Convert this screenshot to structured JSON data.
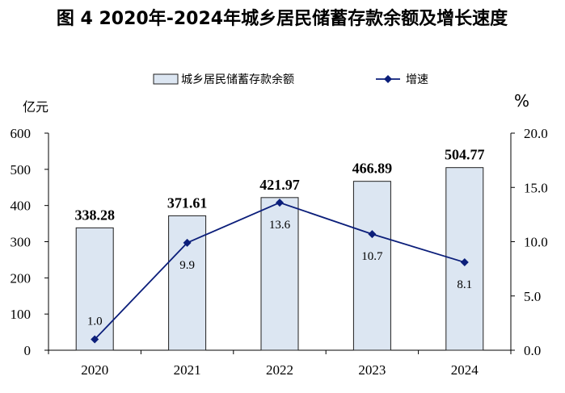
{
  "chart_data": {
    "type": "bar",
    "title": "图 4  2020年-2024年城乡居民储蓄存款余额及增长速度",
    "categories": [
      "2020",
      "2021",
      "2022",
      "2023",
      "2024"
    ],
    "series": [
      {
        "name": "城乡居民储蓄存款余额",
        "type": "bar",
        "axis": "left",
        "values": [
          338.28,
          371.61,
          421.97,
          466.89,
          504.77
        ],
        "labels": [
          "338.28",
          "371.61",
          "421.97",
          "466.89",
          "504.77"
        ]
      },
      {
        "name": "增速",
        "type": "line",
        "axis": "right",
        "values": [
          1.0,
          9.9,
          13.6,
          10.7,
          8.1
        ],
        "labels": [
          "1.0",
          "9.9",
          "13.6",
          "10.7",
          "8.1"
        ]
      }
    ],
    "ylabel_left": "亿元",
    "ylabel_right": "%",
    "ylim_left": [
      0,
      600
    ],
    "ylim_right": [
      0,
      20
    ],
    "yticks_left": [
      "0",
      "100",
      "200",
      "300",
      "400",
      "500",
      "600"
    ],
    "yticks_right": [
      "0.0",
      "5.0",
      "10.0",
      "15.0",
      "20.0"
    ],
    "legend_position": "top-center",
    "grid": false,
    "colors": {
      "bar_fill": "#dce6f2",
      "bar_stroke": "#1f1f1f",
      "line": "#0b1e7a",
      "marker": "#0b1e7a",
      "axis": "#000000"
    }
  }
}
